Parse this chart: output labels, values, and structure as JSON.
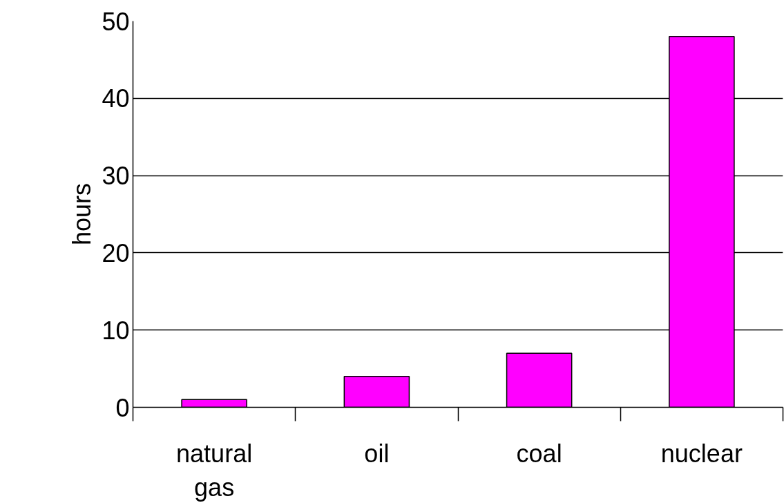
{
  "chart_data": {
    "type": "bar",
    "ylabel": "hours",
    "categories": [
      "natural gas",
      "oil",
      "coal",
      "nuclear"
    ],
    "values": [
      1,
      4,
      7,
      48
    ],
    "color": "#ff00ff",
    "ylim": [
      0,
      50
    ],
    "yticks": [
      0,
      10,
      20,
      30,
      40,
      50
    ],
    "grid": "y"
  }
}
